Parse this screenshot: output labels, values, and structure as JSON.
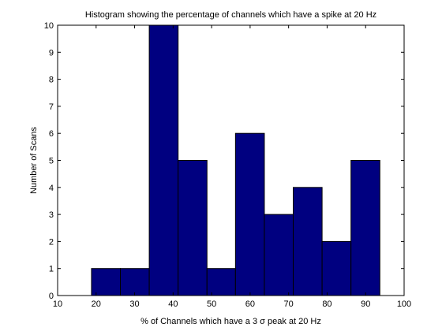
{
  "chart_data": {
    "type": "bar",
    "title": "Histogram showing the percentage of channels which have a spike at 20 Hz",
    "xlabel": "% of Channels which have a 3 σ peak at 20 Hz",
    "ylabel": "Number of Scans",
    "xlim": [
      10,
      100
    ],
    "ylim": [
      0,
      10
    ],
    "xticks": [
      10,
      20,
      30,
      40,
      50,
      60,
      70,
      80,
      90,
      100
    ],
    "yticks": [
      0,
      1,
      2,
      3,
      4,
      5,
      6,
      7,
      8,
      9,
      10
    ],
    "bin_edges": [
      18.8,
      26.3,
      33.8,
      41.3,
      48.8,
      56.2,
      63.7,
      71.2,
      78.7,
      86.2,
      93.7
    ],
    "values": [
      1,
      1,
      10,
      5,
      1,
      6,
      3,
      4,
      2,
      5
    ],
    "bar_color": "#000080",
    "edge_color": "#000000",
    "grid": false
  }
}
